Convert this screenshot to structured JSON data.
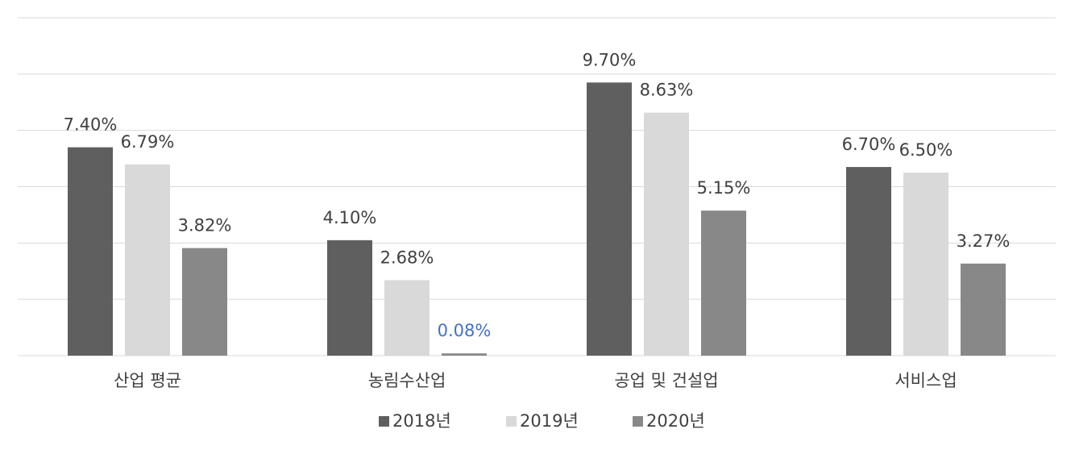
{
  "chart_data": {
    "type": "bar",
    "categories": [
      "산업 평균",
      "농림수산업",
      "공업 및 건설업",
      "서비스업"
    ],
    "series": [
      {
        "name": "2018년",
        "color": "#5f5f5f",
        "values": [
          7.4,
          4.1,
          9.7,
          6.7
        ],
        "value_labels": [
          "7.40%",
          "4.10%",
          "9.70%",
          "6.70%"
        ]
      },
      {
        "name": "2019년",
        "color": "#d9d9d9",
        "values": [
          6.79,
          2.68,
          8.63,
          6.5
        ],
        "value_labels": [
          "6.79%",
          "2.68%",
          "8.63%",
          "6.50%"
        ]
      },
      {
        "name": "2020년",
        "color": "#888888",
        "values": [
          3.82,
          0.08,
          5.15,
          3.27
        ],
        "value_labels": [
          "3.82%",
          "0.08%",
          "5.15%",
          "3.27%"
        ],
        "value_label_colors": [
          "#404040",
          "#4472c4",
          "#404040",
          "#404040"
        ]
      }
    ],
    "ylim": [
      0,
      12
    ],
    "yticks": [
      0,
      2,
      4,
      6,
      8,
      10,
      12
    ],
    "grid": true,
    "legend": "bottom"
  }
}
